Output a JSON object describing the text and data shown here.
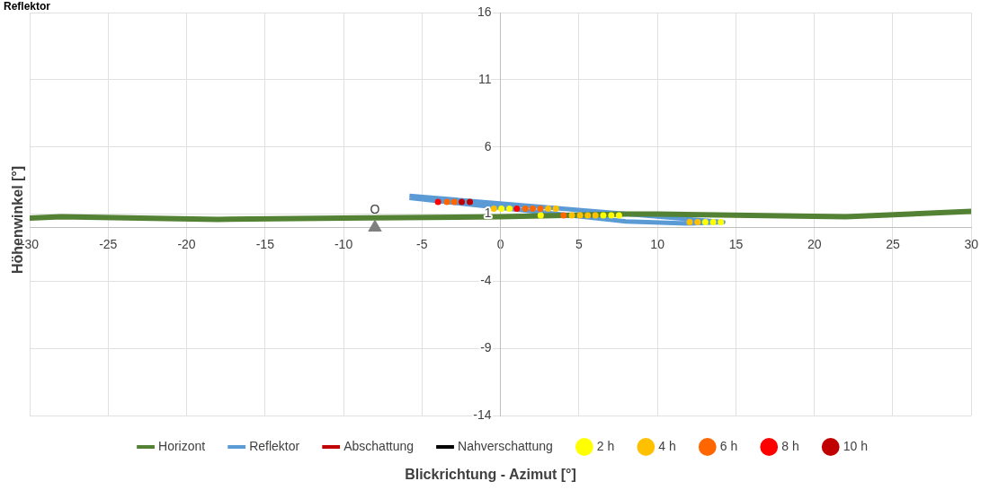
{
  "chart_data": {
    "type": "scatter",
    "xlabel": "Blickrichtung - Azimut [°]",
    "ylabel": "Höhenwinkel [°]",
    "xlim": [
      -30,
      30
    ],
    "xticks": [
      -30,
      -25,
      -20,
      -15,
      -10,
      -5,
      0,
      5,
      10,
      15,
      20,
      25,
      30
    ],
    "ylim": [
      -14,
      16
    ],
    "yticks": [
      -14,
      -9,
      -4,
      1,
      6,
      11,
      16
    ],
    "grid": true,
    "legend": "bottom",
    "annotations": [
      "Reflektor",
      {
        "text": "O",
        "x": -8,
        "y": 0
      }
    ],
    "series": [
      {
        "name": "Horizont",
        "type": "line",
        "color": "#548235",
        "x": [
          -30,
          -28,
          -18,
          -10,
          0,
          8,
          10,
          22,
          30
        ],
        "values": [
          0.7,
          0.8,
          0.6,
          0.7,
          0.8,
          1,
          1,
          0.8,
          1.2
        ]
      },
      {
        "name": "Reflektor",
        "type": "line",
        "color": "#5b9bd5",
        "x": [
          -5.8,
          14.2,
          12,
          8,
          -5.8
        ],
        "values": [
          2.35,
          0.4,
          0.3,
          0.45,
          2.2
        ]
      },
      {
        "name": "Abschattung",
        "type": "line",
        "color": "#c00000"
      },
      {
        "name": "Nahverschattung",
        "type": "line",
        "color": "#000000"
      },
      {
        "name": "2 h",
        "type": "scatter",
        "color": "#ffff00",
        "x": [
          0.06,
          0.57,
          2.56,
          6.55,
          7.06,
          7.55,
          13.05,
          13.55,
          14.04
        ],
        "values": [
          1.4,
          1.4,
          0.9,
          0.9,
          0.9,
          0.9,
          0.4,
          0.4,
          0.4
        ]
      },
      {
        "name": "4 h",
        "type": "scatter",
        "color": "#ffc000",
        "x": [
          -0.42,
          3.04,
          3.53,
          4.55,
          5.07,
          5.56,
          6.05,
          12.05,
          12.56
        ],
        "values": [
          1.4,
          1.4,
          1.4,
          0.9,
          0.9,
          0.9,
          0.9,
          0.4,
          0.4
        ]
      },
      {
        "name": "6 h",
        "type": "scatter",
        "color": "#ff6600",
        "x": [
          -3.41,
          -2.94,
          1.58,
          2.05,
          2.54,
          4.02
        ],
        "values": [
          1.9,
          1.9,
          1.4,
          1.4,
          1.4,
          0.9
        ]
      },
      {
        "name": "8 h",
        "type": "scatter",
        "color": "#ff0000",
        "x": [
          -3.98,
          1.04
        ],
        "values": [
          1.9,
          1.4
        ]
      },
      {
        "name": "10 h",
        "type": "scatter",
        "color": "#c00000",
        "x": [
          -2.47,
          -1.95
        ],
        "values": [
          1.9,
          1.9
        ]
      },
      {
        "type": "scatter",
        "marker": "triangle",
        "color": "#7f7f7f",
        "x": [
          -8
        ],
        "values": [
          0
        ]
      }
    ]
  }
}
